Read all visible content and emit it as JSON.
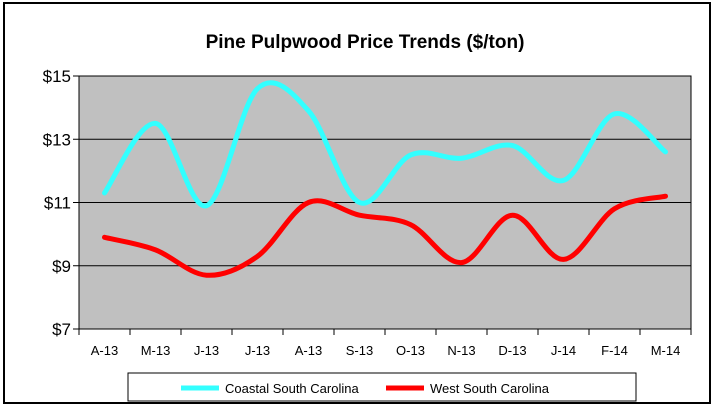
{
  "chart_data": {
    "type": "line",
    "title": "Pine Pulpwood Price Trends ($/ton)",
    "xlabel": "",
    "ylabel": "",
    "categories": [
      "A-13",
      "M-13",
      "J-13",
      "J-13",
      "A-13",
      "S-13",
      "O-13",
      "N-13",
      "D-13",
      "J-14",
      "F-14",
      "M-14"
    ],
    "y_ticks": [
      "$15",
      "$13",
      "$11",
      "$9",
      "$7"
    ],
    "ylim": [
      7,
      15
    ],
    "y_tick_step": 2,
    "grid": true,
    "legend_position": "bottom",
    "plot_background": "#c0c0c0",
    "smooth": true,
    "series": [
      {
        "name": "Coastal South Carolina",
        "color": "#33ffff",
        "values": [
          11.3,
          13.5,
          10.9,
          14.6,
          13.9,
          11.0,
          12.5,
          12.4,
          12.8,
          11.7,
          13.8,
          12.6
        ]
      },
      {
        "name": "West South Carolina",
        "color": "#ff0000",
        "values": [
          9.9,
          9.5,
          8.7,
          9.3,
          11.0,
          10.6,
          10.3,
          9.1,
          10.6,
          9.2,
          10.8,
          11.2
        ]
      }
    ]
  }
}
